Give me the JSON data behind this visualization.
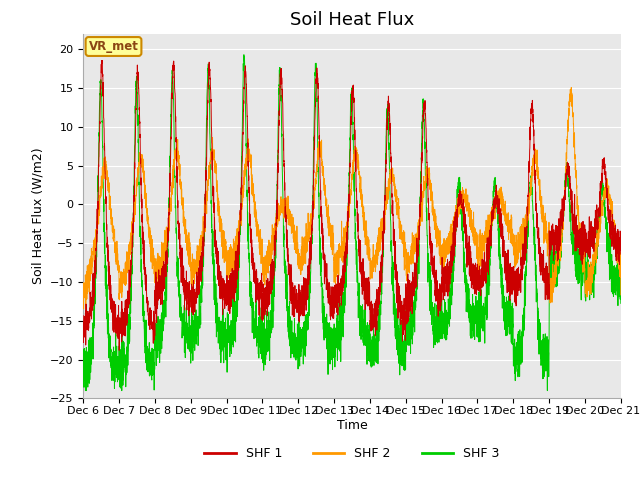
{
  "title": "Soil Heat Flux",
  "ylabel": "Soil Heat Flux (W/m2)",
  "xlabel": "Time",
  "ylim": [
    -25,
    22
  ],
  "yticks": [
    -25,
    -20,
    -15,
    -10,
    -5,
    0,
    5,
    10,
    15,
    20
  ],
  "colors": {
    "SHF 1": "#cc0000",
    "SHF 2": "#ff9900",
    "SHF 3": "#00cc00"
  },
  "legend_labels": [
    "SHF 1",
    "SHF 2",
    "SHF 3"
  ],
  "annotation_text": "VR_met",
  "annotation_fg": "#8B4513",
  "annotation_bg": "#FFFF99",
  "annotation_edge": "#cc8800",
  "background_color": "#e8e8e8",
  "grid_color": "#ffffff",
  "title_fontsize": 13,
  "label_fontsize": 9,
  "tick_fontsize": 8
}
